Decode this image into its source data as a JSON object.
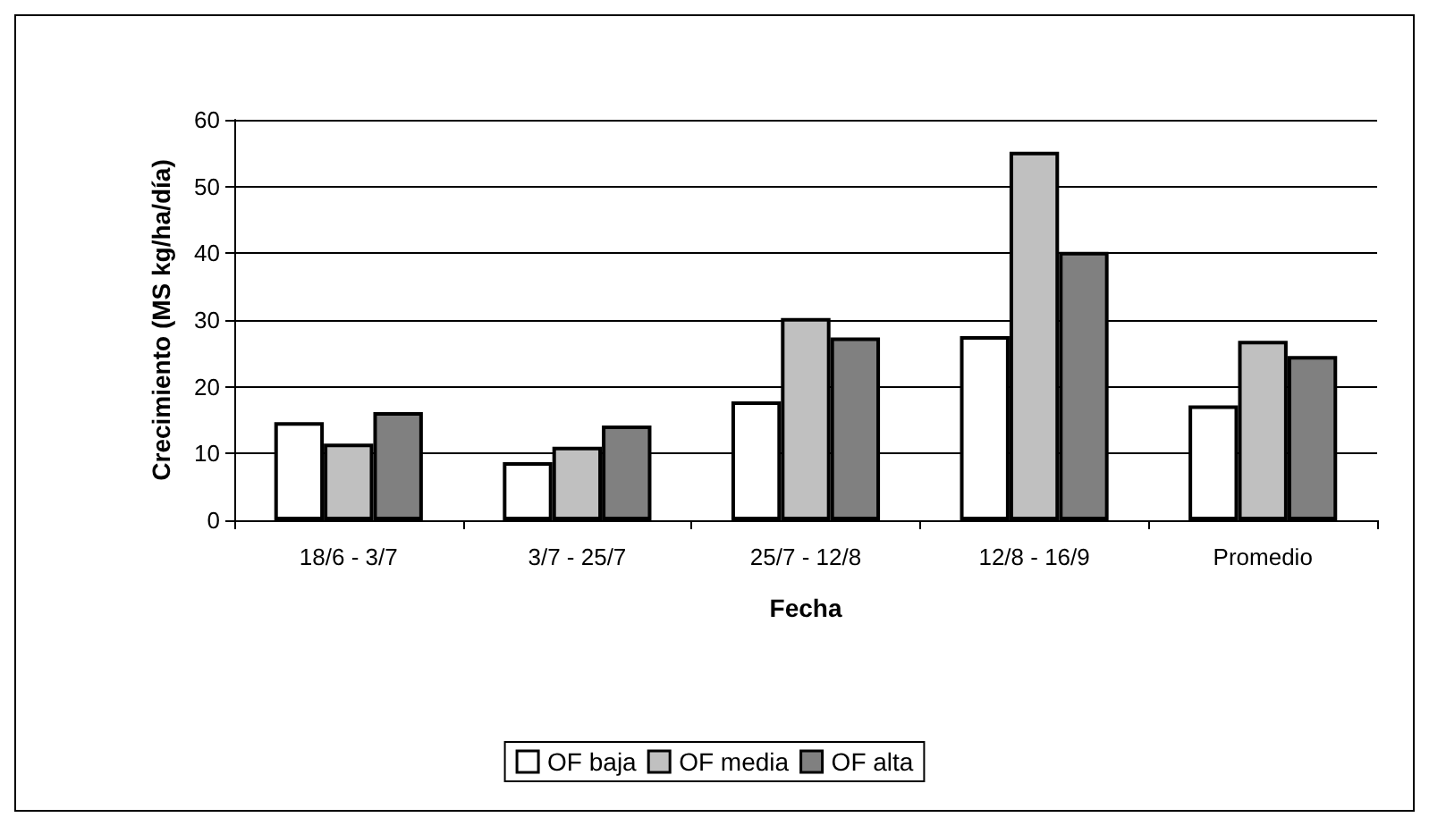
{
  "chart_data": {
    "type": "bar",
    "xlabel": "Fecha",
    "ylabel": "Crecimiento (MS kg/ha/día)",
    "categories": [
      "18/6 - 3/7",
      "3/7 - 25/7",
      "25/7 - 12/8",
      "12/8 - 16/9",
      "Promedio"
    ],
    "series": [
      {
        "name": "OF baja",
        "color": "#ffffff",
        "values": [
          14.7,
          8.7,
          17.8,
          27.6,
          17.2
        ]
      },
      {
        "name": "OF media",
        "color": "#c0c0c0",
        "values": [
          11.5,
          11,
          30.3,
          55.2,
          26.9
        ]
      },
      {
        "name": "OF alta",
        "color": "#808080",
        "values": [
          16.2,
          14.2,
          27.4,
          40.2,
          24.6
        ]
      }
    ],
    "ylim": [
      0,
      60
    ],
    "yticks": [
      0,
      10,
      20,
      30,
      40,
      50,
      60
    ],
    "grid": "y",
    "legend": "bottom"
  }
}
